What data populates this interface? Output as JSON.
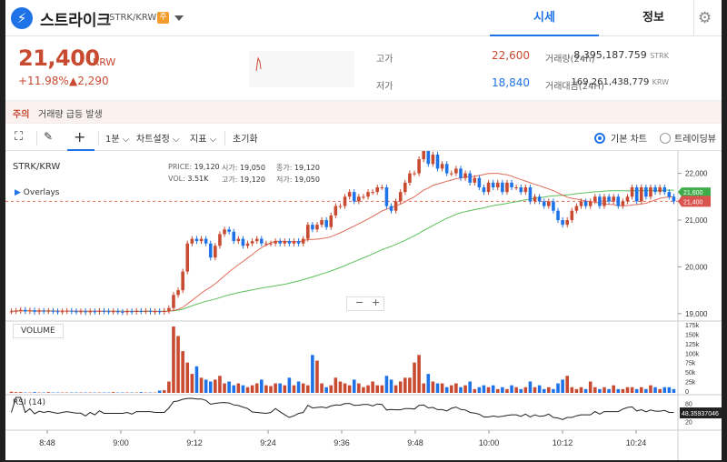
{
  "header": {
    "coin_name": "스트라이크",
    "symbol": "STRK/KRW",
    "krw_badge": "주",
    "tab_price": "시세",
    "tab_info": "정보"
  },
  "price": {
    "value": "21,400",
    "unit": "KRW",
    "change_pct": "+11.98%",
    "change_amt": "▲2,290"
  },
  "stats": {
    "high_label": "고가",
    "high_value": "22,600",
    "low_label": "저가",
    "low_value": "18,840",
    "vol_label": "거래량(24h)",
    "vol_value": "8,395,187.759",
    "vol_unit": "STRK",
    "amt_label": "거래대금(24H)",
    "amt_value": "169,261,438,779",
    "amt_unit": "KRW"
  },
  "notice": {
    "tag": "주의",
    "text": "거래량 급등 발생"
  },
  "toolbar": {
    "interval": "1분",
    "chart_settings": "차트설정",
    "indicators": "지표",
    "reset": "초기화",
    "basic_chart": "기본 차트",
    "tradingview": "트레이딩뷰"
  },
  "chart_header": {
    "symbol": "STRK/KRW",
    "overlays": "Overlays",
    "price_lbl": "PRICE:",
    "price_val": "19,120",
    "open_lbl": "시가:",
    "open_val": "19,050",
    "close_lbl": "종가:",
    "close_val": "19,120",
    "vol_lbl": "VOL:",
    "vol_val": "3.51K",
    "high_lbl": "고가:",
    "high_val": "19,120",
    "low_lbl": "저가:",
    "low_val": "19,050"
  },
  "panels": {
    "volume_label": "VOLUME",
    "rsi_label": "RSI (14)",
    "rsi_value": "48.35937046",
    "current_price_tag": "21,400",
    "ma_tag": "21,600"
  },
  "axes": {
    "price_ticks": [
      "22,000",
      "21,000",
      "20,000",
      "19,000"
    ],
    "volume_ticks": [
      "175k",
      "150k",
      "125k",
      "100k",
      "75k",
      "50k",
      "25k",
      "0"
    ],
    "rsi_ticks": [
      "80",
      "20"
    ],
    "time_ticks": [
      "8:48",
      "9:00",
      "9:12",
      "9:24",
      "9:36",
      "9:48",
      "10:00",
      "10:12",
      "10:24"
    ]
  },
  "colors": {
    "up": "#c84a31",
    "down": "#1e73e8",
    "ma_short": "#e06c5a",
    "ma_long": "#5ac05a"
  },
  "chart_data": {
    "type": "candlestick",
    "symbol": "STRK/KRW",
    "x_ticks": [
      "8:48",
      "9:00",
      "9:12",
      "9:24",
      "9:36",
      "9:48",
      "10:00",
      "10:12",
      "10:24"
    ],
    "ylim": [
      18900,
      22400
    ],
    "close": [
      19050,
      19060,
      19080,
      19050,
      19070,
      19040,
      19060,
      19050,
      19060,
      19050,
      19040,
      19050,
      19060,
      19050,
      19040,
      19050,
      19030,
      19050,
      19040,
      19060,
      19050,
      19040,
      19050,
      19040,
      19030,
      19050,
      19040,
      19060,
      19050,
      19060,
      19040,
      19050,
      19040,
      19060,
      19120,
      19400,
      19500,
      19900,
      20500,
      20600,
      20550,
      20600,
      20500,
      20200,
      20450,
      20700,
      20800,
      20750,
      20550,
      20600,
      20450,
      20500,
      20550,
      20600,
      20500,
      20500,
      20500,
      20550,
      20500,
      20550,
      20500,
      20550,
      20500,
      20600,
      20900,
      20800,
      20900,
      21000,
      20850,
      21100,
      21300,
      21300,
      21500,
      21600,
      21400,
      21500,
      21500,
      21600,
      21600,
      21700,
      21700,
      21300,
      21200,
      21400,
      21600,
      21800,
      22000,
      22000,
      22300,
      22500,
      22200,
      22400,
      22100,
      22200,
      22000,
      22000,
      22100,
      21900,
      22000,
      21800,
      21900,
      21700,
      21600,
      21800,
      21700,
      21800,
      21600,
      21800,
      21700,
      21700,
      21600,
      21700,
      21400,
      21500,
      21400,
      21300,
      21400,
      21200,
      21000,
      20900,
      21000,
      21200,
      21300,
      21400,
      21300,
      21400,
      21500,
      21300,
      21500,
      21400,
      21500,
      21300,
      21400,
      21500,
      21700,
      21400,
      21700,
      21500,
      21700,
      21600,
      21700,
      21600,
      21500,
      21400
    ],
    "volume": [
      3,
      2,
      2,
      1,
      1,
      2,
      1,
      1,
      2,
      1,
      1,
      1,
      1,
      1,
      1,
      1,
      1,
      1,
      1,
      1,
      1,
      1,
      2,
      1,
      1,
      1,
      1,
      1,
      2,
      1,
      1,
      1,
      6,
      7,
      30,
      175,
      150,
      110,
      80,
      50,
      70,
      40,
      35,
      30,
      35,
      45,
      25,
      30,
      20,
      25,
      20,
      15,
      20,
      25,
      35,
      20,
      18,
      25,
      25,
      20,
      40,
      20,
      30,
      25,
      20,
      100,
      85,
      25,
      15,
      20,
      40,
      30,
      25,
      20,
      35,
      25,
      15,
      20,
      30,
      20,
      20,
      45,
      35,
      20,
      30,
      40,
      40,
      80,
      100,
      25,
      50,
      30,
      25,
      25,
      15,
      20,
      25,
      15,
      20,
      30,
      10,
      15,
      20,
      15,
      20,
      10,
      15,
      10,
      20,
      15,
      10,
      15,
      30,
      15,
      20,
      10,
      15,
      10,
      25,
      35,
      45,
      15,
      10,
      15,
      10,
      30,
      15,
      10,
      15,
      10,
      20,
      10,
      10,
      15,
      15,
      10,
      15,
      10,
      20,
      15,
      10,
      15,
      15,
      10
    ],
    "rsi_range": [
      0,
      100
    ],
    "rsi_last": 48.35937046
  }
}
